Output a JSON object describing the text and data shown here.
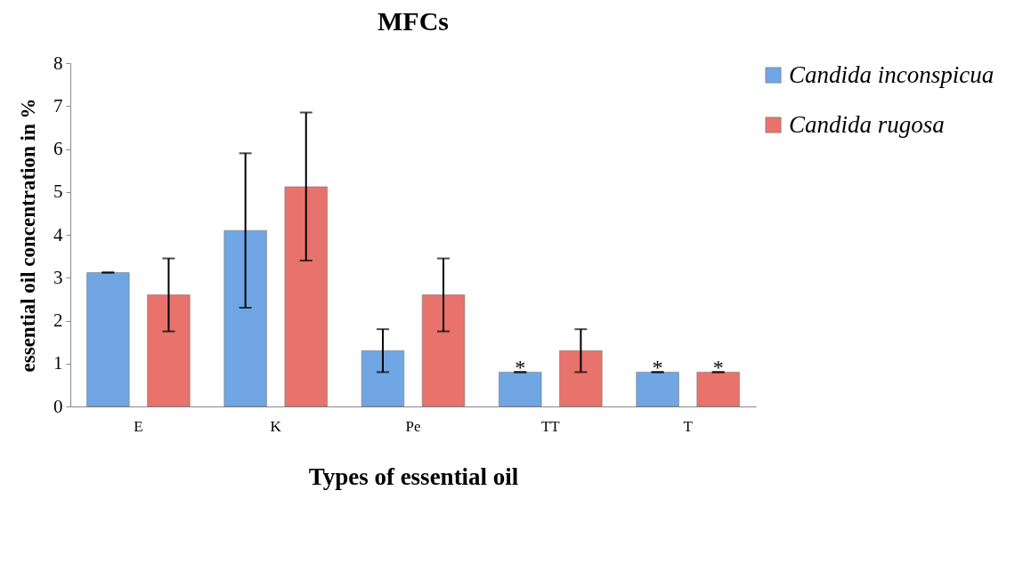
{
  "chart_data": {
    "type": "bar",
    "title": "MFCs",
    "xlabel": "Types of essential oil",
    "ylabel": "essential oil concentration in %",
    "categories": [
      "E",
      "K",
      "Pe",
      "TT",
      "T"
    ],
    "series": [
      {
        "name": "Candida inconspicua",
        "color": "#6fa6e3",
        "values": [
          3.12,
          4.1,
          1.3,
          0.8,
          0.8
        ],
        "errors": [
          0,
          [
            2.3,
            5.9
          ],
          [
            0.8,
            1.8
          ],
          0,
          0
        ],
        "value_labels": [
          null,
          null,
          null,
          "*",
          "*"
        ]
      },
      {
        "name": "Candida rugosa",
        "color": "#e8726c",
        "values": [
          2.6,
          5.12,
          2.6,
          1.3,
          0.8
        ],
        "errors": [
          [
            1.75,
            3.45
          ],
          [
            3.4,
            6.85
          ],
          [
            1.75,
            3.45
          ],
          [
            0.8,
            1.8
          ],
          0
        ],
        "value_labels": [
          null,
          null,
          null,
          null,
          "*"
        ]
      }
    ],
    "ylim": [
      0,
      8
    ],
    "yticks": [
      0,
      1,
      2,
      3,
      4,
      5,
      6,
      7,
      8
    ],
    "grid": false,
    "legend": "top right"
  }
}
